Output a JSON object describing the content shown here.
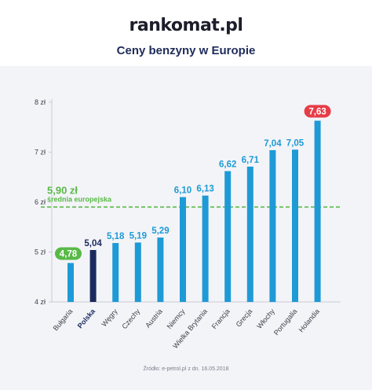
{
  "brand": {
    "logo_text": "rankomat.pl"
  },
  "header": {
    "title": "Ceny benzyny w Europie"
  },
  "source": "Źródło: e-petrol.pl z dn. 16.05.2018",
  "colors": {
    "bar": "#1e9ad6",
    "highlight_bar": "#1b2a5e",
    "average_line": "#58b947",
    "max_badge": "#e63c46",
    "min_badge": "#58b947"
  },
  "chart_data": {
    "type": "bar",
    "title": "Ceny benzyny w Europie",
    "xlabel": "",
    "ylabel": "",
    "ylim": [
      4,
      8
    ],
    "yticks": [
      "4 zł",
      "5 zł",
      "6 zł",
      "7 zł",
      "8 zł"
    ],
    "grid": false,
    "categories": [
      "Bułgaria",
      "Polska",
      "Węgry",
      "Czechy",
      "Austria",
      "Niemcy",
      "Wielka Brytania",
      "Francja",
      "Grecja",
      "Włochy",
      "Portugalia",
      "Holandia"
    ],
    "values": [
      4.78,
      5.04,
      5.18,
      5.19,
      5.29,
      6.1,
      6.13,
      6.62,
      6.71,
      7.04,
      7.05,
      7.63
    ],
    "value_labels": [
      "4,78",
      "5,04",
      "5,18",
      "5,19",
      "5,29",
      "6,10",
      "6,13",
      "6,62",
      "6,71",
      "7,04",
      "7,05",
      "7,63"
    ],
    "highlight_category": "Polska",
    "average": {
      "value": 5.9,
      "value_label": "5,90 zł",
      "label": "średnia europejska"
    }
  }
}
